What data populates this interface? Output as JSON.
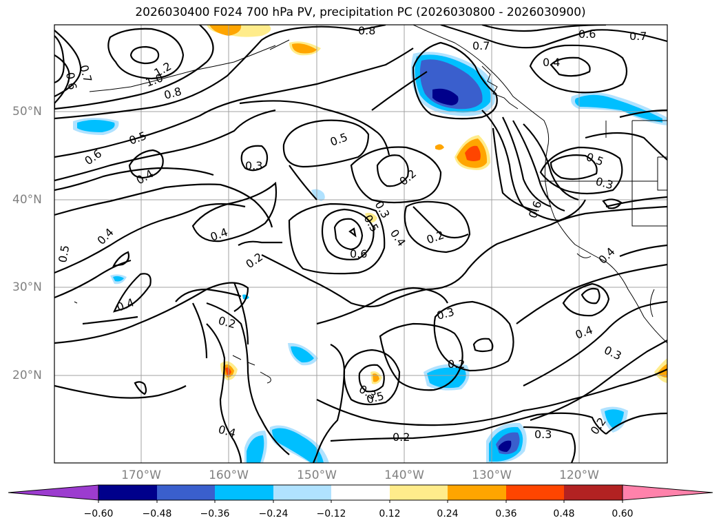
{
  "title": "2026030400 F024 700 hPa PV, precipitation PC (2026030800 - 2026030900)",
  "latitude_labels": [
    "50°N",
    "40°N",
    "30°N",
    "20°N"
  ],
  "longitude_labels": [
    "170°W",
    "160°W",
    "150°W",
    "140°W",
    "130°W",
    "120°W"
  ],
  "colorbar": {
    "tick_labels": [
      "−0.60",
      "−0.48",
      "−0.36",
      "−0.24",
      "−0.12",
      "0.12",
      "0.24",
      "0.36",
      "0.48",
      "0.60"
    ],
    "colors": [
      "#9c3ccf",
      "#00008b",
      "#3a5fcd",
      "#00bfff",
      "#b0e2ff",
      "#ffffff",
      "#ffec8b",
      "#ffa500",
      "#ff4500",
      "#b22222",
      "#ff82ab"
    ]
  },
  "contour_labels": [
    "0.8",
    "0.7",
    "0.6",
    "0.7",
    "0.6",
    "0.7",
    "1.2",
    "1.0",
    "0.8",
    "0.4",
    "0.5",
    "0.6",
    "0.5",
    "0.3",
    "0.2",
    "0.5",
    "0.4",
    "0.3",
    "0.4",
    "0.3",
    "0.5",
    "0.4",
    "0.6",
    "0.2",
    "0.6",
    "0.2",
    "0.4",
    "0.5",
    "0.4",
    "0.4",
    "0.2",
    "0.3",
    "0.4",
    "0.3",
    "0.2",
    "0.3",
    "0.5",
    "0.4",
    "0.2",
    "0.3",
    "0.2"
  ],
  "shading_colors": {
    "light_blue": "#b0e2ff",
    "deep_sky_blue": "#00bfff",
    "royal_blue": "#3a5fcd",
    "navy": "#00008b",
    "light_orange": "#ffec8b",
    "orange": "#ffa500",
    "red_orange": "#ff4500"
  }
}
